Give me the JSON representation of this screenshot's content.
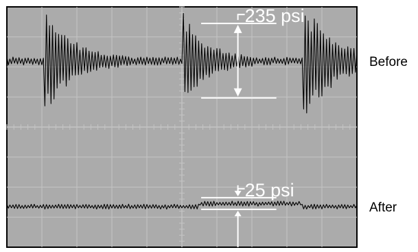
{
  "chart_data": {
    "type": "line",
    "title": "",
    "xlabel": "",
    "ylabel": "",
    "grid": true,
    "grid_divisions": {
      "x": 10,
      "y": 8
    },
    "y_range_divisions": [
      -4,
      4
    ],
    "colors": {
      "screen": "#ababab",
      "grid": "#c4c4c4",
      "trace": "#000000",
      "annotation": "#ffffff",
      "label": "#000000"
    },
    "traces": [
      {
        "label": "Before",
        "baseline_div": 2.2,
        "baseline_ripple_div": 0.1,
        "bursts": [
          {
            "start_div": 1.08,
            "decay": 0.72,
            "amplitude_div": 1.4
          },
          {
            "start_div": 5.03,
            "decay": 0.62,
            "amplitude_div": 1.25
          },
          {
            "start_div": 8.45,
            "decay": 0.9,
            "amplitude_div": 1.55
          }
        ]
      },
      {
        "label": "After",
        "baseline_div": -2.65,
        "baseline_ripple_div": 0.06,
        "plateaus": [
          {
            "start_div": 5.5,
            "end_div": 8.4,
            "offset_div": 0.1
          }
        ]
      }
    ],
    "annotations": [
      {
        "text": "235 psi",
        "top_div": 3.45,
        "bottom_div": 0.97
      },
      {
        "text": "25 psi",
        "top_div": -2.35,
        "bottom_div": -2.74
      }
    ]
  }
}
